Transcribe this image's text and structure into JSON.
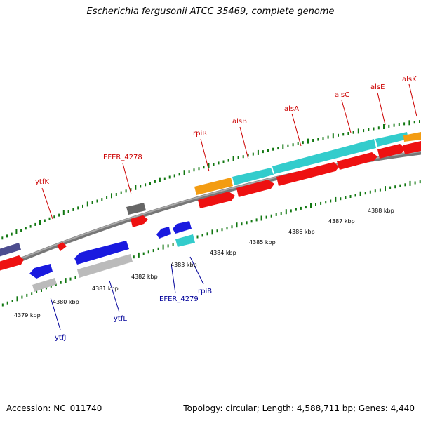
{
  "title": "Escherichia fergusonii ATCC 35469, complete genome",
  "footer": {
    "accession": "Accession: NC_011740",
    "summary": "Topology: circular; Length: 4,588,711 bp; Genes: 4,440"
  },
  "scale_labels": [
    "4379 kbp",
    "4380 kbp",
    "4381 kbp",
    "4382 kbp",
    "4383 kbp",
    "4384 kbp",
    "4385 kbp",
    "4386 kbp",
    "4387 kbp",
    "4388 kbp"
  ],
  "forward_gene_labels": [
    "ytfK",
    "EFER_4278",
    "rpiR",
    "alsB",
    "alsA",
    "alsC",
    "alsE",
    "alsK"
  ],
  "reverse_gene_labels": [
    "ytfJ",
    "ytfL",
    "EFER_4279",
    "rpiB"
  ],
  "colors": {
    "forward_label": "#cc0000",
    "reverse_label": "#000099",
    "backbone": "#888888",
    "tick": "#117711",
    "orange": "#f39c12",
    "cyan": "#33cccc",
    "red": "#ee1111",
    "blue": "#1a1adf",
    "gray": "#bbbbbb",
    "darkgray": "#666666",
    "purple": "#4d4d8f"
  }
}
